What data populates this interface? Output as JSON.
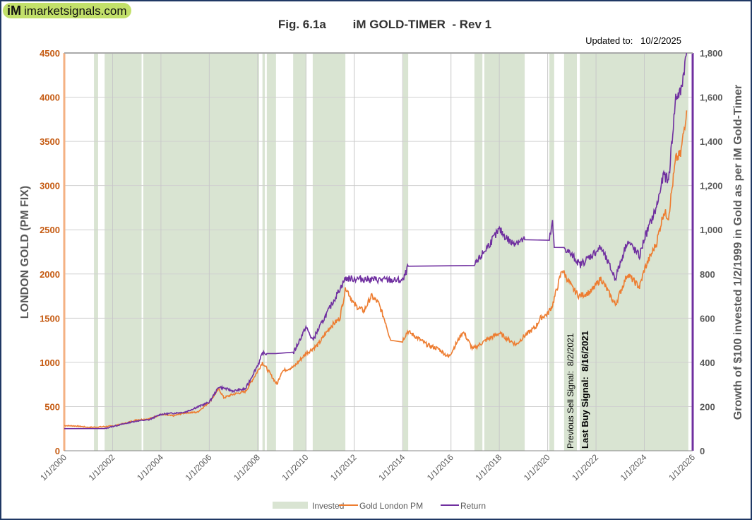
{
  "logo": {
    "mark": "iM",
    "text": "imarketsignals.com"
  },
  "chart_data": {
    "type": "line",
    "title": "Fig. 6.1a        iM GOLD-TIMER  - Rev 1",
    "updated": "Updated to:   10/2/2025",
    "ylabel": "LONDON GOLD (PM FIX)",
    "y2label": "Growth of $100 invested 1/2/1999 in Gold as per iM Gold-Timer",
    "xlim": [
      2000,
      2026
    ],
    "ylim": [
      0,
      4500
    ],
    "y2lim": [
      0,
      1800
    ],
    "xticks": [
      "1/1/2000",
      "1/1/2002",
      "1/1/2004",
      "1/1/2006",
      "1/1/2008",
      "1/1/2010",
      "1/1/2012",
      "1/1/2014",
      "1/1/2016",
      "1/1/2018",
      "1/1/2020",
      "1/1/2022",
      "1/1/2024",
      "1/1/2026"
    ],
    "yticks": [
      "0",
      "500",
      "1000",
      "1500",
      "2000",
      "2500",
      "3000",
      "3500",
      "4000",
      "4500"
    ],
    "y2ticks": [
      "0",
      "200",
      "400",
      "600",
      "800",
      "1,000",
      "1,200",
      "1,400",
      "1,600",
      "1,800"
    ],
    "colors": {
      "gold": "#ed7d31",
      "return": "#7030a0",
      "invested": "#d9e4d2",
      "left_axis": "#c55a11"
    },
    "legend": [
      "Invested",
      "Gold London PM",
      "Return"
    ],
    "legend_position": "bottom",
    "annotations": [
      "Previous Sell Signal:  8/2/2021",
      "Last Buy Signal:  8/16/2021"
    ],
    "invested_periods": [
      [
        2001.23,
        2001.4
      ],
      [
        2001.67,
        2003.2
      ],
      [
        2003.27,
        2008.06
      ],
      [
        2008.2,
        2008.3
      ],
      [
        2008.38,
        2008.76
      ],
      [
        2009.47,
        2010.02
      ],
      [
        2010.28,
        2011.63
      ],
      [
        2014.02,
        2014.23
      ],
      [
        2016.97,
        2017.3
      ],
      [
        2017.38,
        2019.05
      ],
      [
        2020.07,
        2020.27
      ],
      [
        2020.68,
        2021.21
      ],
      [
        2021.33,
        2025.82
      ]
    ],
    "gold": [
      [
        2000,
        285
      ],
      [
        2000.5,
        280
      ],
      [
        2001,
        265
      ],
      [
        2001.5,
        270
      ],
      [
        2002,
        280
      ],
      [
        2002.5,
        310
      ],
      [
        2003,
        350
      ],
      [
        2003.5,
        360
      ],
      [
        2004,
        410
      ],
      [
        2004.5,
        395
      ],
      [
        2005,
        430
      ],
      [
        2005.5,
        435
      ],
      [
        2006,
        550
      ],
      [
        2006.4,
        700
      ],
      [
        2006.6,
        600
      ],
      [
        2007,
        640
      ],
      [
        2007.5,
        670
      ],
      [
        2008,
        900
      ],
      [
        2008.2,
        1000
      ],
      [
        2008.5,
        880
      ],
      [
        2008.8,
        750
      ],
      [
        2009,
        900
      ],
      [
        2009.5,
        950
      ],
      [
        2010,
        1100
      ],
      [
        2010.5,
        1200
      ],
      [
        2011,
        1400
      ],
      [
        2011.4,
        1500
      ],
      [
        2011.65,
        1850
      ],
      [
        2012,
        1650
      ],
      [
        2012.4,
        1580
      ],
      [
        2012.7,
        1750
      ],
      [
        2013,
        1670
      ],
      [
        2013.3,
        1450
      ],
      [
        2013.5,
        1250
      ],
      [
        2014,
        1250
      ],
      [
        2014.2,
        1350
      ],
      [
        2014.5,
        1300
      ],
      [
        2015,
        1200
      ],
      [
        2015.5,
        1150
      ],
      [
        2015.9,
        1060
      ],
      [
        2016.5,
        1350
      ],
      [
        2016.9,
        1150
      ],
      [
        2017.5,
        1260
      ],
      [
        2018,
        1330
      ],
      [
        2018.7,
        1200
      ],
      [
        2019,
        1290
      ],
      [
        2019.5,
        1400
      ],
      [
        2019.7,
        1500
      ],
      [
        2020,
        1550
      ],
      [
        2020.2,
        1650
      ],
      [
        2020.6,
        2050
      ],
      [
        2021,
        1850
      ],
      [
        2021.3,
        1750
      ],
      [
        2021.8,
        1800
      ],
      [
        2022.2,
        1950
      ],
      [
        2022.8,
        1650
      ],
      [
        2023.3,
        2000
      ],
      [
        2023.8,
        1850
      ],
      [
        2024,
        2050
      ],
      [
        2024.5,
        2350
      ],
      [
        2024.8,
        2700
      ],
      [
        2025,
        2650
      ],
      [
        2025.3,
        3300
      ],
      [
        2025.5,
        3350
      ],
      [
        2025.75,
        3850
      ]
    ],
    "return": [
      [
        2000,
        100
      ],
      [
        2001.67,
        100
      ],
      [
        2002,
        110
      ],
      [
        2003,
        135
      ],
      [
        2003.5,
        140
      ],
      [
        2004,
        165
      ],
      [
        2005,
        175
      ],
      [
        2006,
        220
      ],
      [
        2006.4,
        290
      ],
      [
        2007,
        270
      ],
      [
        2007.5,
        280
      ],
      [
        2008.06,
        400
      ],
      [
        2008.2,
        440
      ],
      [
        2008.3,
        440
      ],
      [
        2008.38,
        440
      ],
      [
        2008.76,
        440
      ],
      [
        2009.47,
        440
      ],
      [
        2010,
        560
      ],
      [
        2010.28,
        500
      ],
      [
        2011,
        650
      ],
      [
        2011.63,
        780
      ],
      [
        2014.02,
        770
      ],
      [
        2014.23,
        835
      ],
      [
        2016.97,
        835
      ],
      [
        2017.3,
        890
      ],
      [
        2018,
        1000
      ],
      [
        2018.5,
        940
      ],
      [
        2019.05,
        955
      ],
      [
        2020.07,
        955
      ],
      [
        2020.2,
        1030
      ],
      [
        2020.27,
        920
      ],
      [
        2020.68,
        920
      ],
      [
        2021.21,
        860
      ],
      [
        2021.33,
        840
      ],
      [
        2022.2,
        920
      ],
      [
        2022.8,
        780
      ],
      [
        2023.3,
        950
      ],
      [
        2023.8,
        880
      ],
      [
        2024,
        960
      ],
      [
        2024.5,
        1100
      ],
      [
        2024.8,
        1250
      ],
      [
        2025,
        1220
      ],
      [
        2025.3,
        1600
      ],
      [
        2025.5,
        1620
      ],
      [
        2025.75,
        1800
      ]
    ]
  }
}
